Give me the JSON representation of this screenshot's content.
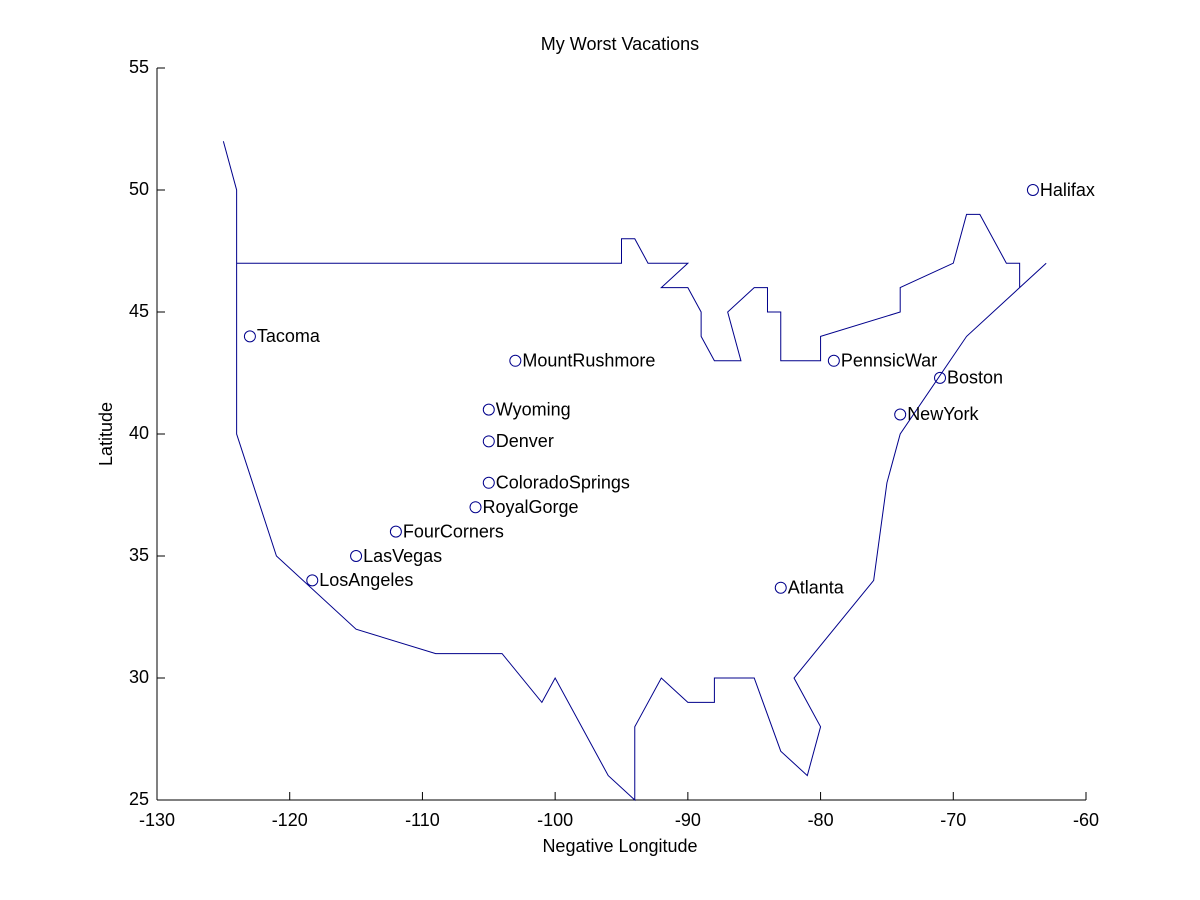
{
  "chart_data": {
    "type": "line",
    "title": "My Worst Vacations",
    "x_label": "Negative Longitude",
    "y_label": "Latitude",
    "xlim": [
      -130,
      -60
    ],
    "ylim": [
      25,
      55
    ],
    "xticks": [
      -130,
      -120,
      -110,
      -100,
      -90,
      -80,
      -70,
      -60
    ],
    "yticks": [
      25,
      30,
      35,
      40,
      45,
      50,
      55
    ],
    "grid": false,
    "series": [
      {
        "type": "line",
        "color": "#00008b",
        "x": [
          -125,
          -124,
          -124,
          -95,
          -95,
          -94,
          -93,
          -90,
          -92,
          -90,
          -89,
          -89,
          -88,
          -86,
          -87,
          -85,
          -84,
          -84,
          -83,
          -83,
          -80,
          -80,
          -74,
          -74,
          -70,
          -69,
          -68,
          -66,
          -65,
          -65,
          -63,
          -69,
          -74,
          -75,
          -76,
          -82,
          -80,
          -81,
          -83,
          -85,
          -88,
          -88,
          -90,
          -92,
          -94,
          -94,
          -96,
          -100,
          -101,
          -104,
          -109,
          -115,
          -121,
          -124,
          -124
        ],
        "values": [
          52,
          50,
          47,
          47,
          48,
          48,
          47,
          47,
          46,
          46,
          45,
          44,
          43,
          43,
          45,
          46,
          46,
          45,
          45,
          43,
          43,
          44,
          45,
          46,
          47,
          49,
          49,
          47,
          47,
          46,
          47,
          44,
          40,
          38,
          34,
          30,
          28,
          26,
          27,
          30,
          30,
          29,
          29,
          30,
          28,
          25,
          26,
          30,
          29,
          31,
          31,
          32,
          35,
          40,
          47
        ]
      },
      {
        "type": "scatter",
        "color": "#00008b",
        "labels": [
          "Tacoma",
          "MountRushmore",
          "Wyoming",
          "Denver",
          "ColoradoSprings",
          "RoyalGorge",
          "FourCorners",
          "LasVegas",
          "LosAngeles",
          "Atlanta",
          "PennsicWar",
          "Boston",
          "NewYork",
          "Halifax"
        ],
        "x": [
          -123,
          -103,
          -105,
          -105,
          -105,
          -106,
          -112,
          -115,
          -118.3,
          -83,
          -79,
          -71,
          -74,
          -64
        ],
        "values": [
          44,
          43,
          41,
          39.7,
          38,
          37,
          36,
          35,
          34,
          33.7,
          43,
          42.3,
          40.8,
          50
        ]
      }
    ]
  }
}
